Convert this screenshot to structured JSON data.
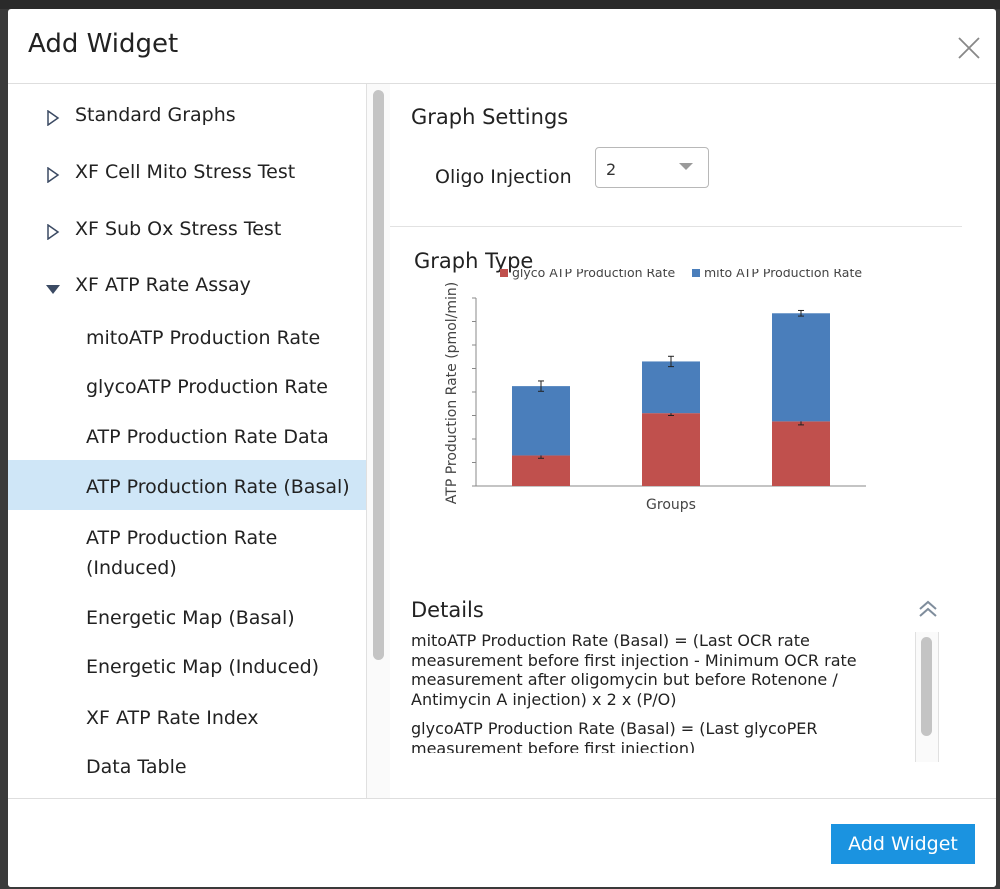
{
  "dialog": {
    "title": "Add Widget",
    "add_button_label": "Add Widget"
  },
  "sidebar": {
    "groups": [
      {
        "label": "Standard Graphs",
        "expanded": false
      },
      {
        "label": "XF Cell Mito Stress Test",
        "expanded": false
      },
      {
        "label": "XF Sub Ox Stress Test",
        "expanded": false
      },
      {
        "label": "XF ATP Rate Assay",
        "expanded": true
      }
    ],
    "items": [
      {
        "label": "mitoATP Production Rate",
        "selected": false
      },
      {
        "label": "glycoATP Production Rate",
        "selected": false
      },
      {
        "label": "ATP Production Rate Data",
        "selected": false
      },
      {
        "label": "ATP Production Rate (Basal)",
        "selected": true
      },
      {
        "label": "ATP Production Rate (Induced)",
        "selected": false
      },
      {
        "label": "Energetic Map (Basal)",
        "selected": false
      },
      {
        "label": "Energetic Map (Induced)",
        "selected": false
      },
      {
        "label": "XF ATP Rate Index",
        "selected": false
      },
      {
        "label": "Data Table",
        "selected": false
      }
    ]
  },
  "settings": {
    "title": "Graph Settings",
    "oligo_label": "Oligo Injection",
    "oligo_value": "2"
  },
  "graph_type": {
    "title": "Graph Type"
  },
  "details": {
    "title": "Details",
    "paragraphs": [
      "mitoATP Production Rate (Basal) = (Last OCR rate measurement before first injection - Minimum OCR rate measurement after oligomycin but before Rotenone / Antimycin A injection) x 2 x (P/O)",
      "glycoATP Production Rate (Basal) = (Last glycoPER measurement before first injection)"
    ]
  },
  "colors": {
    "glyco": "#c0504d",
    "mito": "#4a7ebb",
    "accent": "#1b93e0",
    "selected_bg": "#cfe6f7"
  },
  "chart_data": {
    "type": "bar",
    "stacked": true,
    "xlabel": "Groups",
    "ylabel": "ATP Production Rate (pmol/min)",
    "ylim": [
      0,
      8
    ],
    "categories": [
      "",
      "",
      ""
    ],
    "series": [
      {
        "name": "glyco ATP Production Rate",
        "values": [
          1.3,
          3.1,
          2.75
        ],
        "errors": [
          0.12,
          0.1,
          0.15
        ],
        "color": "#c0504d"
      },
      {
        "name": "mito ATP Production Rate",
        "values": [
          2.95,
          2.2,
          4.6
        ],
        "errors": [
          0.22,
          0.22,
          0.12
        ],
        "color": "#4a7ebb"
      }
    ],
    "legend_position": "top",
    "grid": false
  }
}
